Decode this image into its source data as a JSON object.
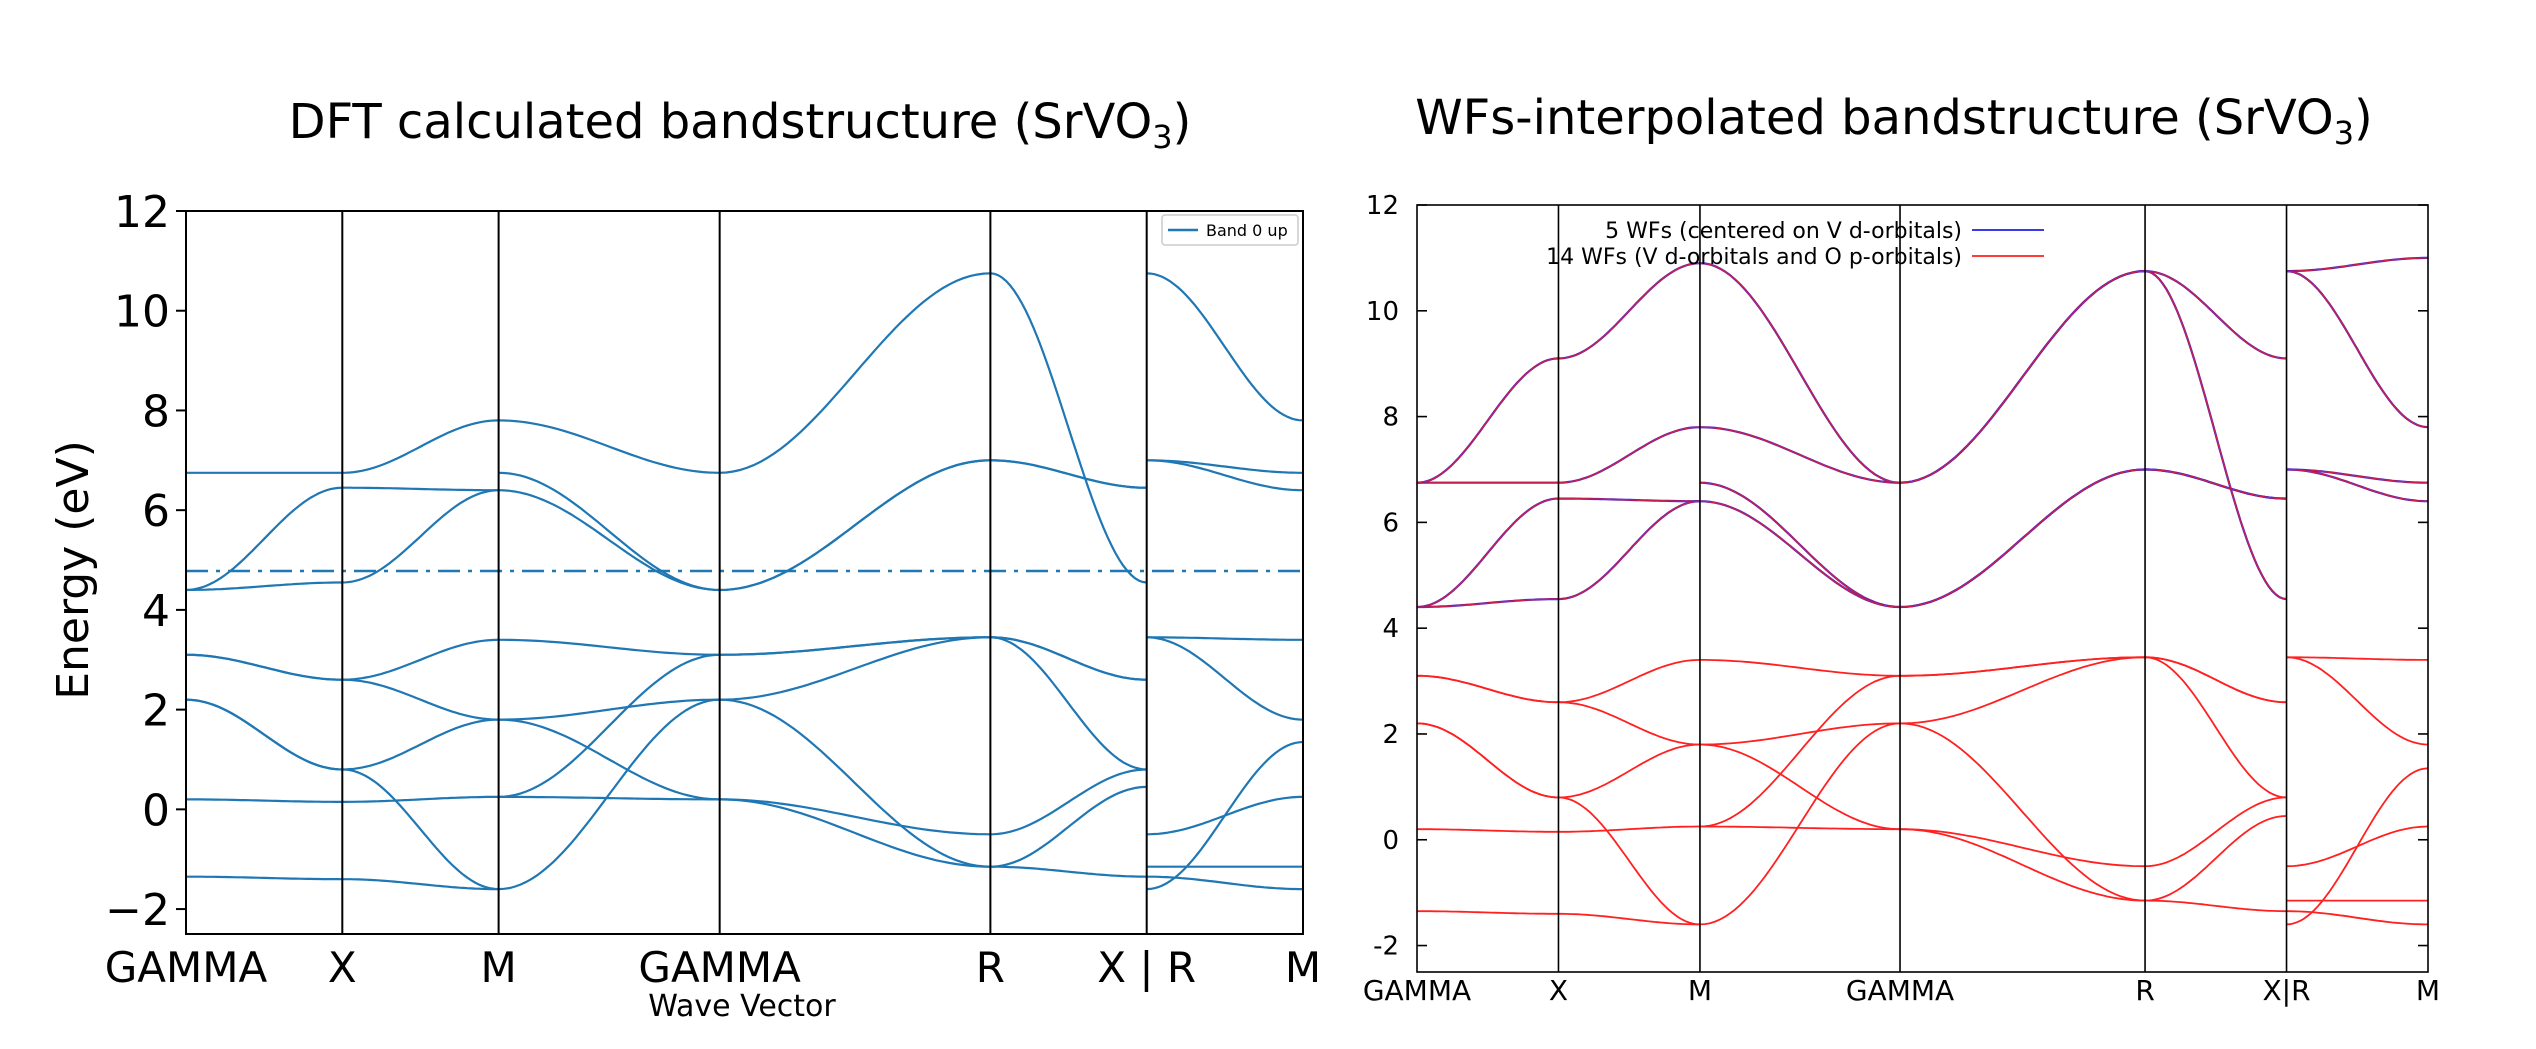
{
  "colors": {
    "dft_band": "#1f77b4",
    "wf5": "#1e1ee6",
    "wf14": "#ff2020",
    "axis": "#000000"
  },
  "chart_data": [
    {
      "type": "line",
      "title_main": "DFT calculated bandstructure (SrVO",
      "title_sub": "3",
      "title_tail": ")",
      "xlabel": "Wave Vector",
      "ylabel": "Energy (eV)",
      "ylim": [
        -2.5,
        12
      ],
      "yticks": [
        "12",
        "10",
        "8",
        "6",
        "4",
        "2",
        "0",
        "−2"
      ],
      "ytick_values": [
        12,
        10,
        8,
        6,
        4,
        2,
        0,
        -2
      ],
      "kpoints": [
        "GAMMA",
        "X",
        "M",
        "GAMMA",
        "R",
        "X | R",
        "M"
      ],
      "kpoint_x": [
        0,
        0.5,
        1.0,
        1.7071,
        2.5731,
        3.0731,
        3.5731
      ],
      "xlim": [
        0,
        3.5731
      ],
      "fermi_level": 4.78,
      "legend": [
        {
          "name": "Band 0 up"
        }
      ],
      "legend_position": "top-right",
      "segments": [
        {
          "bands": [
            [
              0.2,
              0.15
            ],
            [
              -1.35,
              -1.4
            ],
            [
              2.2,
              0.8
            ],
            [
              2.2,
              0.8
            ],
            [
              3.1,
              2.6
            ],
            [
              3.1,
              2.6
            ],
            [
              4.4,
              4.55
            ],
            [
              4.4,
              6.45
            ],
            [
              6.75,
              6.75
            ]
          ],
          "mids": [
            null,
            null,
            null,
            null,
            null,
            null,
            null,
            null,
            null
          ]
        },
        {
          "bands": [
            [
              0.15,
              0.25
            ],
            [
              -1.4,
              -1.6
            ],
            [
              0.8,
              -1.6
            ],
            [
              0.8,
              1.8
            ],
            [
              2.6,
              1.8
            ],
            [
              2.6,
              3.4
            ],
            [
              4.55,
              6.4
            ],
            [
              6.45,
              6.4
            ],
            [
              6.75,
              7.8
            ]
          ],
          "mids": [
            null,
            null,
            null,
            null,
            null,
            null,
            null,
            null,
            null
          ]
        },
        {
          "bands": [
            [
              0.25,
              0.2
            ],
            [
              -1.6,
              2.2
            ],
            [
              1.8,
              0.2
            ],
            [
              1.8,
              2.2
            ],
            [
              3.4,
              3.1
            ],
            [
              0.25,
              3.1
            ],
            [
              6.4,
              4.4
            ],
            [
              6.75,
              4.4
            ],
            [
              7.8,
              6.75
            ]
          ],
          "mids": [
            null,
            null,
            null,
            null,
            null,
            null,
            null,
            null,
            null
          ]
        },
        {
          "bands": [
            [
              0.2,
              -0.5
            ],
            [
              2.2,
              -1.15
            ],
            [
              0.2,
              -1.15
            ],
            [
              2.2,
              3.45
            ],
            [
              3.1,
              3.45
            ],
            [
              3.1,
              3.45
            ],
            [
              4.4,
              7.0
            ],
            [
              4.4,
              7.0
            ],
            [
              6.75,
              10.75
            ]
          ],
          "mids": [
            null,
            null,
            null,
            null,
            null,
            null,
            null,
            null,
            null
          ]
        },
        {
          "bands": [
            [
              -0.5,
              0.8
            ],
            [
              -1.15,
              -1.35
            ],
            [
              -1.15,
              0.45
            ],
            [
              3.45,
              2.6
            ],
            [
              3.45,
              0.8
            ],
            [
              3.45,
              2.6
            ],
            [
              7.0,
              6.45
            ],
            [
              7.0,
              6.45
            ],
            [
              10.75,
              4.55
            ]
          ],
          "mids": [
            null,
            null,
            null,
            null,
            null,
            null,
            null,
            null,
            null
          ]
        },
        {
          "bands": [
            [
              -0.5,
              0.25
            ],
            [
              -1.35,
              -1.6
            ],
            [
              -1.15,
              -1.15
            ],
            [
              3.45,
              3.4
            ],
            [
              3.45,
              1.8
            ],
            [
              -1.6,
              1.35
            ],
            [
              7.0,
              6.75
            ],
            [
              7.0,
              6.4
            ],
            [
              10.75,
              7.8
            ]
          ],
          "mids": [
            null,
            null,
            null,
            null,
            null,
            null,
            null,
            null,
            null
          ]
        }
      ]
    },
    {
      "type": "line",
      "title_main": "WFs-interpolated bandstructure (SrVO",
      "title_sub": "3",
      "title_tail": ")",
      "xlabel": "",
      "ylabel": "",
      "ylim": [
        -2.5,
        12
      ],
      "yticks": [
        "12",
        "10",
        "8",
        "6",
        "4",
        "2",
        "0",
        "-2"
      ],
      "ytick_values": [
        12,
        10,
        8,
        6,
        4,
        2,
        0,
        -2
      ],
      "kpoints": [
        "GAMMA",
        "X",
        "M",
        "GAMMA",
        "R",
        "X|R",
        "M"
      ],
      "kpoint_x": [
        0,
        0.5,
        1.0,
        1.7071,
        2.5731,
        3.0731,
        3.5731
      ],
      "xlim": [
        0,
        3.5731
      ],
      "legend": [
        {
          "name": "5 WFs (centered on V d-orbitals)"
        },
        {
          "name": "14 WFs (V d-orbitals and O p-orbitals)"
        }
      ],
      "legend_position": "top-left",
      "segments": [
        {
          "bands": [
            [
              6.75,
              6.75
            ],
            [
              4.4,
              6.45
            ],
            [
              4.4,
              4.55
            ],
            [
              6.75,
              9.1
            ]
          ]
        },
        {
          "bands": [
            [
              6.75,
              7.8
            ],
            [
              6.45,
              6.4
            ],
            [
              4.55,
              6.4
            ],
            [
              9.1,
              10.9
            ]
          ]
        },
        {
          "bands": [
            [
              7.8,
              6.75
            ],
            [
              6.75,
              4.4
            ],
            [
              6.4,
              4.4
            ],
            [
              10.9,
              6.75
            ]
          ]
        },
        {
          "bands": [
            [
              6.75,
              10.75
            ],
            [
              4.4,
              7.0
            ],
            [
              4.4,
              7.0
            ],
            [
              6.75,
              10.75
            ]
          ]
        },
        {
          "bands": [
            [
              10.75,
              9.1
            ],
            [
              7.0,
              6.45
            ],
            [
              7.0,
              6.45
            ],
            [
              10.75,
              4.55
            ]
          ]
        },
        {
          "bands": [
            [
              10.75,
              11.0
            ],
            [
              7.0,
              6.75
            ],
            [
              7.0,
              6.4
            ],
            [
              10.75,
              7.8
            ]
          ]
        }
      ],
      "segments_lower": "same as DFT lower manifold"
    }
  ]
}
